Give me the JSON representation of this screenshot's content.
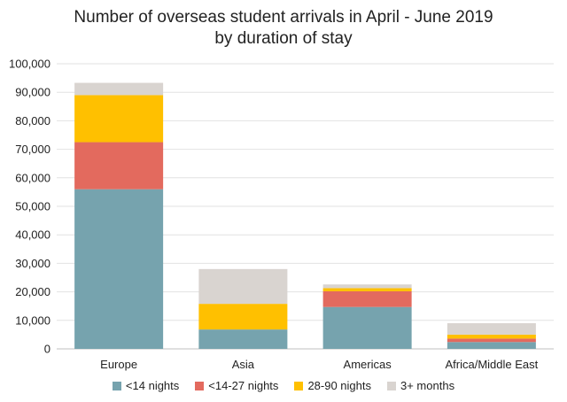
{
  "chart_data": {
    "type": "bar",
    "stacked": true,
    "title": "Number of overseas student arrivals in April - June 2019",
    "subtitle": "by duration of stay",
    "categories": [
      "Europe",
      "Asia",
      "Americas",
      "Africa/Middle East"
    ],
    "series": [
      {
        "name": "<14 nights",
        "color": "#76A3AE",
        "values": [
          56000,
          6800,
          14700,
          2400
        ]
      },
      {
        "name": "<14-27 nights",
        "color": "#E36A5E",
        "values": [
          16500,
          0,
          5500,
          1200
        ]
      },
      {
        "name": "28-90 nights",
        "color": "#FFC000",
        "values": [
          16500,
          9000,
          1100,
          1400
        ]
      },
      {
        "name": "3+ months",
        "color": "#D9D4D0",
        "values": [
          4300,
          12200,
          1300,
          4000
        ]
      }
    ],
    "ylim": [
      0,
      100000
    ],
    "yticks": [
      "0",
      "10,000",
      "20,000",
      "30,000",
      "40,000",
      "50,000",
      "60,000",
      "70,000",
      "80,000",
      "90,000",
      "100,000"
    ],
    "grid": true,
    "legend_position": "bottom",
    "xlabel": "",
    "ylabel": ""
  }
}
